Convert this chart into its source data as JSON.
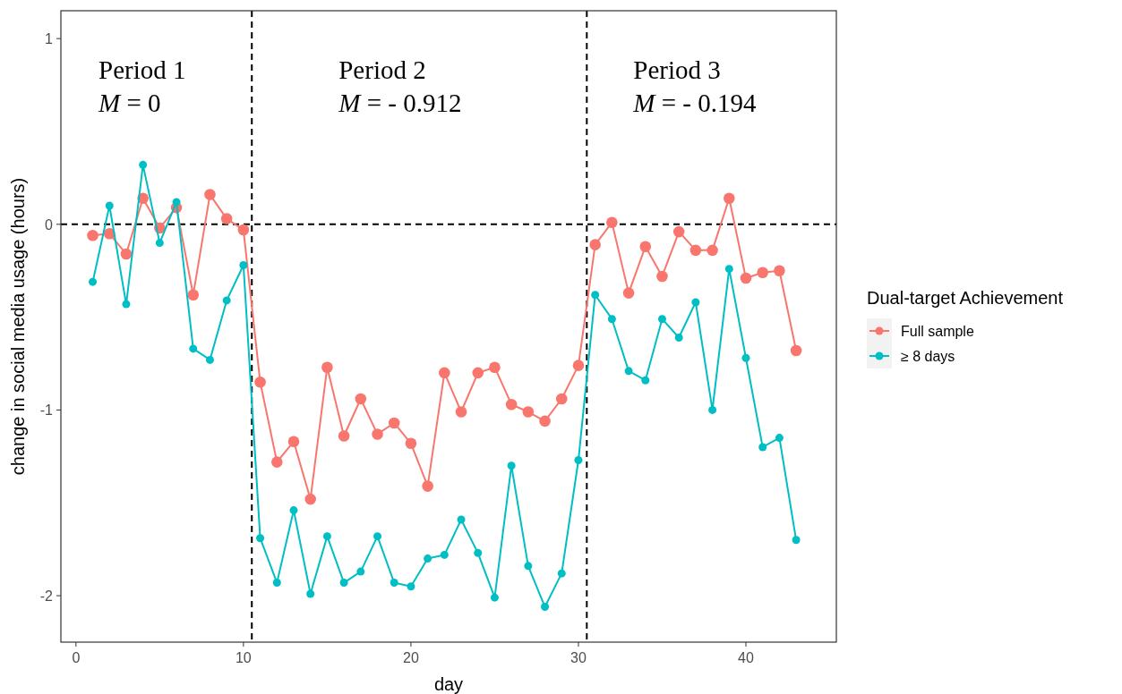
{
  "chart_data": {
    "type": "line",
    "xlabel": "day",
    "ylabel": "change in social media usage (hours)",
    "legend_title": "Dual-target Achievement",
    "legend": "right",
    "marker": "circle",
    "line_style": "solid",
    "grid": false,
    "x": [
      1,
      2,
      3,
      4,
      5,
      6,
      7,
      8,
      9,
      10,
      11,
      12,
      13,
      14,
      15,
      16,
      17,
      18,
      19,
      20,
      21,
      22,
      23,
      24,
      25,
      26,
      27,
      28,
      29,
      30,
      31,
      32,
      33,
      34,
      35,
      36,
      37,
      38,
      39,
      40,
      41,
      42,
      43
    ],
    "series": [
      {
        "name": "Full sample",
        "color": "#f8766d",
        "values": [
          -0.06,
          -0.05,
          -0.16,
          0.14,
          -0.02,
          0.09,
          -0.38,
          0.16,
          0.03,
          -0.03,
          -0.85,
          -1.28,
          -1.17,
          -1.48,
          -0.77,
          -1.14,
          -0.94,
          -1.13,
          -1.07,
          -1.18,
          -1.41,
          -0.8,
          -1.01,
          -0.8,
          -0.77,
          -0.97,
          -1.01,
          -1.06,
          -0.94,
          -0.76,
          -0.11,
          0.01,
          -0.37,
          -0.12,
          -0.28,
          -0.04,
          -0.14,
          -0.14,
          0.14,
          -0.29,
          -0.26,
          -0.25,
          -0.68
        ]
      },
      {
        "name": "≥ 8 days",
        "color": "#00bfc4",
        "values": [
          -0.31,
          0.1,
          -0.43,
          0.32,
          -0.1,
          0.12,
          -0.67,
          -0.73,
          -0.41,
          -0.22,
          -1.69,
          -1.93,
          -1.54,
          -1.99,
          -1.68,
          -1.93,
          -1.87,
          -1.68,
          -1.93,
          -1.95,
          -1.8,
          -1.78,
          -1.59,
          -1.77,
          -2.01,
          -1.3,
          -1.84,
          -2.06,
          -1.88,
          -1.27,
          -0.38,
          -0.51,
          -0.79,
          -0.84,
          -0.51,
          -0.61,
          -0.42,
          -1.0,
          -0.24,
          -0.72,
          -1.2,
          -1.15,
          -1.7
        ]
      }
    ],
    "xlim": [
      -0.9,
      45.4
    ],
    "xticks": [
      0,
      10,
      20,
      30,
      40
    ],
    "ylim": [
      -2.25,
      1.15
    ],
    "yticks": [
      -2,
      -1,
      0,
      1
    ],
    "ref_lines": [
      {
        "axis": "y",
        "value": 0,
        "line_style": "dashed",
        "color": "#000000"
      },
      {
        "axis": "x",
        "value": 10.5,
        "line_style": "dashed",
        "color": "#000000"
      },
      {
        "axis": "x",
        "value": 30.5,
        "line_style": "dashed",
        "color": "#000000"
      }
    ],
    "annotations": [
      "Period 1",
      "M = 0",
      "Period 2",
      "M = - 0.912",
      "Period 3",
      "M = - 0.194"
    ]
  }
}
